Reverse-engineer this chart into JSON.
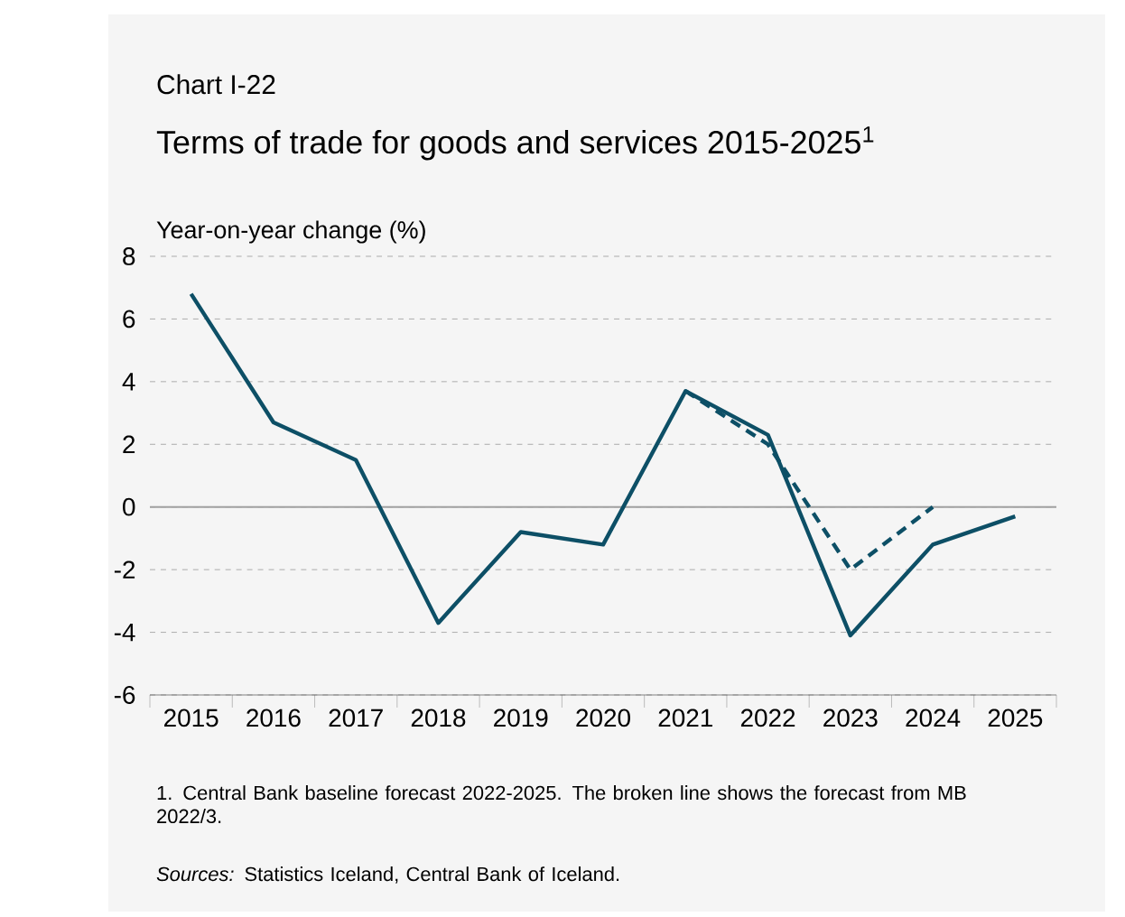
{
  "chart_data": {
    "type": "line",
    "title": "Chart I-22",
    "subtitle": "Terms of trade for goods and services 2015-2025$^{1}$",
    "ylabel": "Year-on-year change (%)",
    "categories": [
      "2015",
      "2016",
      "2017",
      "2018",
      "2019",
      "2020",
      "2021",
      "2022",
      "2023",
      "2024",
      "2025"
    ],
    "series": [
      {
        "color": "#0d4f66",
        "line_style": "solid",
        "values": [
          6.8,
          2.7,
          1.5,
          -3.7,
          -0.8,
          -1.2,
          3.7,
          2.3,
          -4.1,
          -1.2,
          -0.3
        ]
      },
      {
        "color": "#0d4f66",
        "line_style": "dashed",
        "values": [
          null,
          null,
          null,
          null,
          null,
          null,
          3.7,
          2.0,
          -2.0,
          0.0,
          null
        ]
      }
    ],
    "ylim": [
      -6,
      8
    ],
    "yticks": [
      -6,
      -4,
      -2,
      0,
      2,
      4,
      6,
      8
    ],
    "grid": "y",
    "marker": "none",
    "ref_lines": [
      {
        "axis": "y",
        "value": 0,
        "color": "#a0a0a0"
      }
    ],
    "annotations": [
      "1. Central Bank baseline forecast 2022-2025. The broken line shows the forecast from MB 2022/3.",
      "*Sources:* Statistics Iceland, Central Bank of Iceland."
    ]
  }
}
